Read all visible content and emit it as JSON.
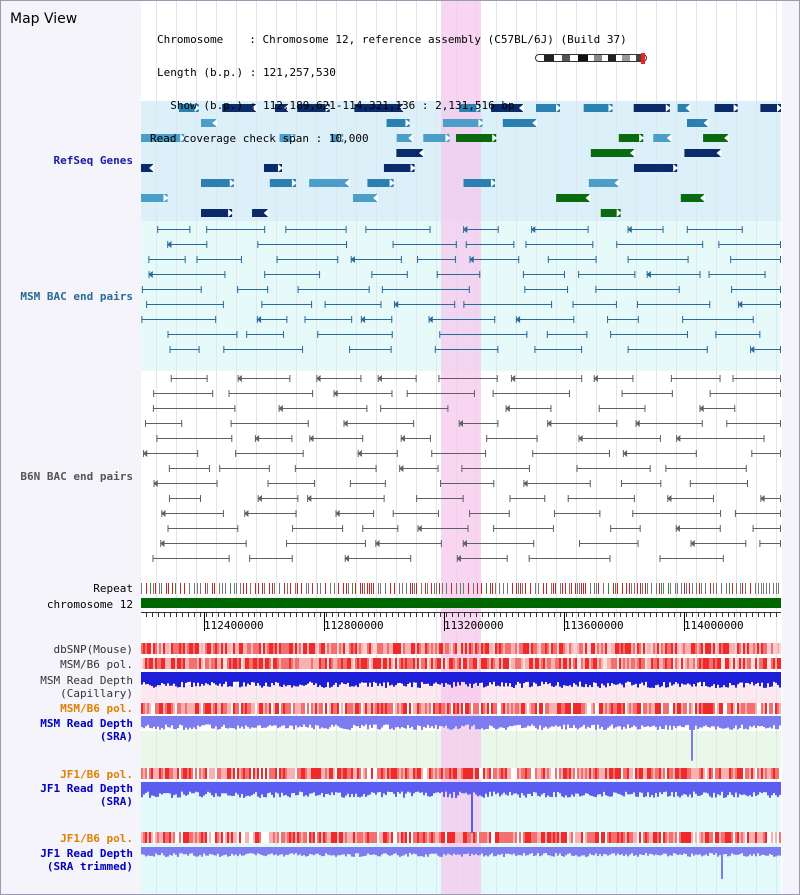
{
  "header": {
    "title": "Map View",
    "chromosome_label": "Chromosome",
    "chromosome_value": "Chromosome 12, reference assembly (C57BL/6J) (Build 37)",
    "length_label": "Length (b.p.)",
    "length_value": "121,257,530",
    "show_label": "Show (b.p.)",
    "show_value": "112,189,621-114,321,136 : 2,131,516 bp",
    "span_label": "Read coverage check span",
    "span_value": "10,000"
  },
  "tracks": {
    "refseq": "RefSeq Genes",
    "msm_bac": "MSM BAC end pairs",
    "b6n_bac": "B6N BAC end pairs",
    "repeat": "Repeat",
    "chromosome": "chromosome 12",
    "dbsnp": "dbSNP(Mouse)",
    "msm_b6_pol_1": "MSM/B6 pol.",
    "msm_depth_cap_1": "MSM Read Depth",
    "msm_depth_cap_2": "(Capillary)",
    "msm_b6_pol_2": "MSM/B6 pol.",
    "msm_depth_sra_1": "MSM Read Depth",
    "msm_depth_sra_2": "(SRA)",
    "jf1_b6_pol_1": "JF1/B6 pol.",
    "jf1_depth_sra_1": "JF1 Read Depth",
    "jf1_depth_sra_2": "(SRA)",
    "jf1_b6_pol_2": "JF1/B6 pol.",
    "jf1_depth_trim_1": "JF1 Read Depth",
    "jf1_depth_trim_2": "(SRA trimmed)"
  },
  "axis": {
    "ticks": [
      "112400000",
      "112800000",
      "113200000",
      "113600000",
      "114000000"
    ]
  },
  "colors": {
    "refseq_label": "#1a1aaa",
    "msm_label": "#2a6a9a",
    "b6n_label": "#555555",
    "pol_label": "#e08000",
    "depth_label": "#0000c0",
    "highlight": "#f8d8f0",
    "chrom_bar": "#006600"
  }
}
